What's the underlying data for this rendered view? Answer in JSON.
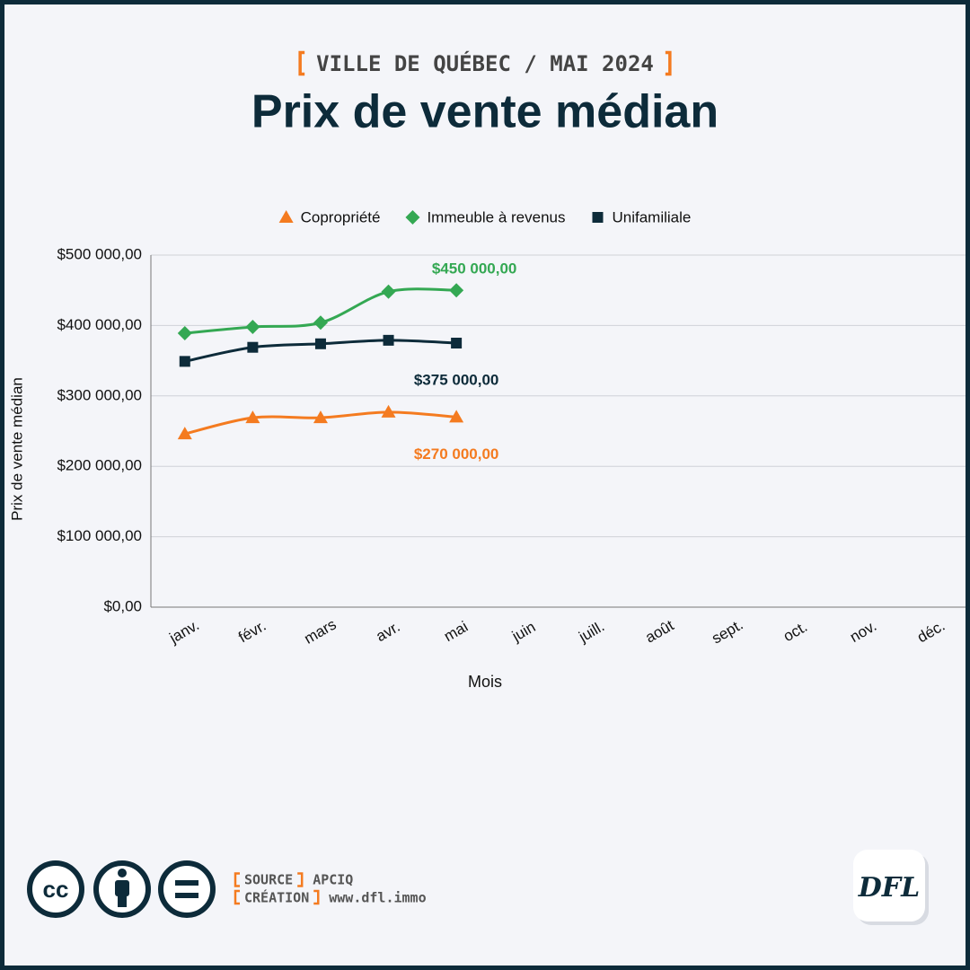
{
  "chart_data": {
    "type": "line",
    "subtitle": "VILLE DE QUÉBEC / MAI 2024",
    "title": "Prix de vente médian",
    "x_label": "Mois",
    "y_label": "Prix de vente médian",
    "categories": [
      "janv.",
      "févr.",
      "mars",
      "avr.",
      "mai",
      "juin",
      "juill.",
      "août",
      "sept.",
      "oct.",
      "nov.",
      "déc."
    ],
    "series": [
      {
        "name": "Copropriété",
        "color": "#f47b20",
        "marker": "triangle",
        "values": [
          246000,
          269000,
          269000,
          277000,
          270000,
          null,
          null,
          null,
          null,
          null,
          null,
          null
        ],
        "value_labels": [
          null,
          null,
          null,
          null,
          "$270 000,00",
          null,
          null,
          null,
          null,
          null,
          null,
          null
        ]
      },
      {
        "name": "Immeuble à revenus",
        "color": "#34a853",
        "marker": "diamond",
        "values": [
          389000,
          398000,
          404000,
          448000,
          450000,
          null,
          null,
          null,
          null,
          null,
          null,
          null
        ],
        "value_labels": [
          null,
          null,
          null,
          null,
          "$450 000,00",
          null,
          null,
          null,
          null,
          null,
          null,
          null
        ]
      },
      {
        "name": "Unifamiliale",
        "color": "#0d2b3a",
        "marker": "square",
        "values": [
          349000,
          369000,
          374000,
          379000,
          375000,
          null,
          null,
          null,
          null,
          null,
          null,
          null
        ],
        "value_labels": [
          null,
          null,
          null,
          null,
          "$375 000,00",
          null,
          null,
          null,
          null,
          null,
          null,
          null
        ]
      }
    ],
    "ylim": [
      0,
      500000
    ],
    "yticks": [
      {
        "value": 0,
        "label": "$0,00"
      },
      {
        "value": 100000,
        "label": "$100 000,00"
      },
      {
        "value": 200000,
        "label": "$200 000,00"
      },
      {
        "value": 300000,
        "label": "$300 000,00"
      },
      {
        "value": 400000,
        "label": "$400 000,00"
      },
      {
        "value": 500000,
        "label": "$500 000,00"
      }
    ],
    "grid": true,
    "legend": "top",
    "smooth": true
  },
  "footer": {
    "source_label": "SOURCE",
    "source": "APCIQ",
    "creation_label": "CRÉATION",
    "creation": "www.dfl.immo",
    "license_icon": "cc",
    "logo": "DFL"
  }
}
